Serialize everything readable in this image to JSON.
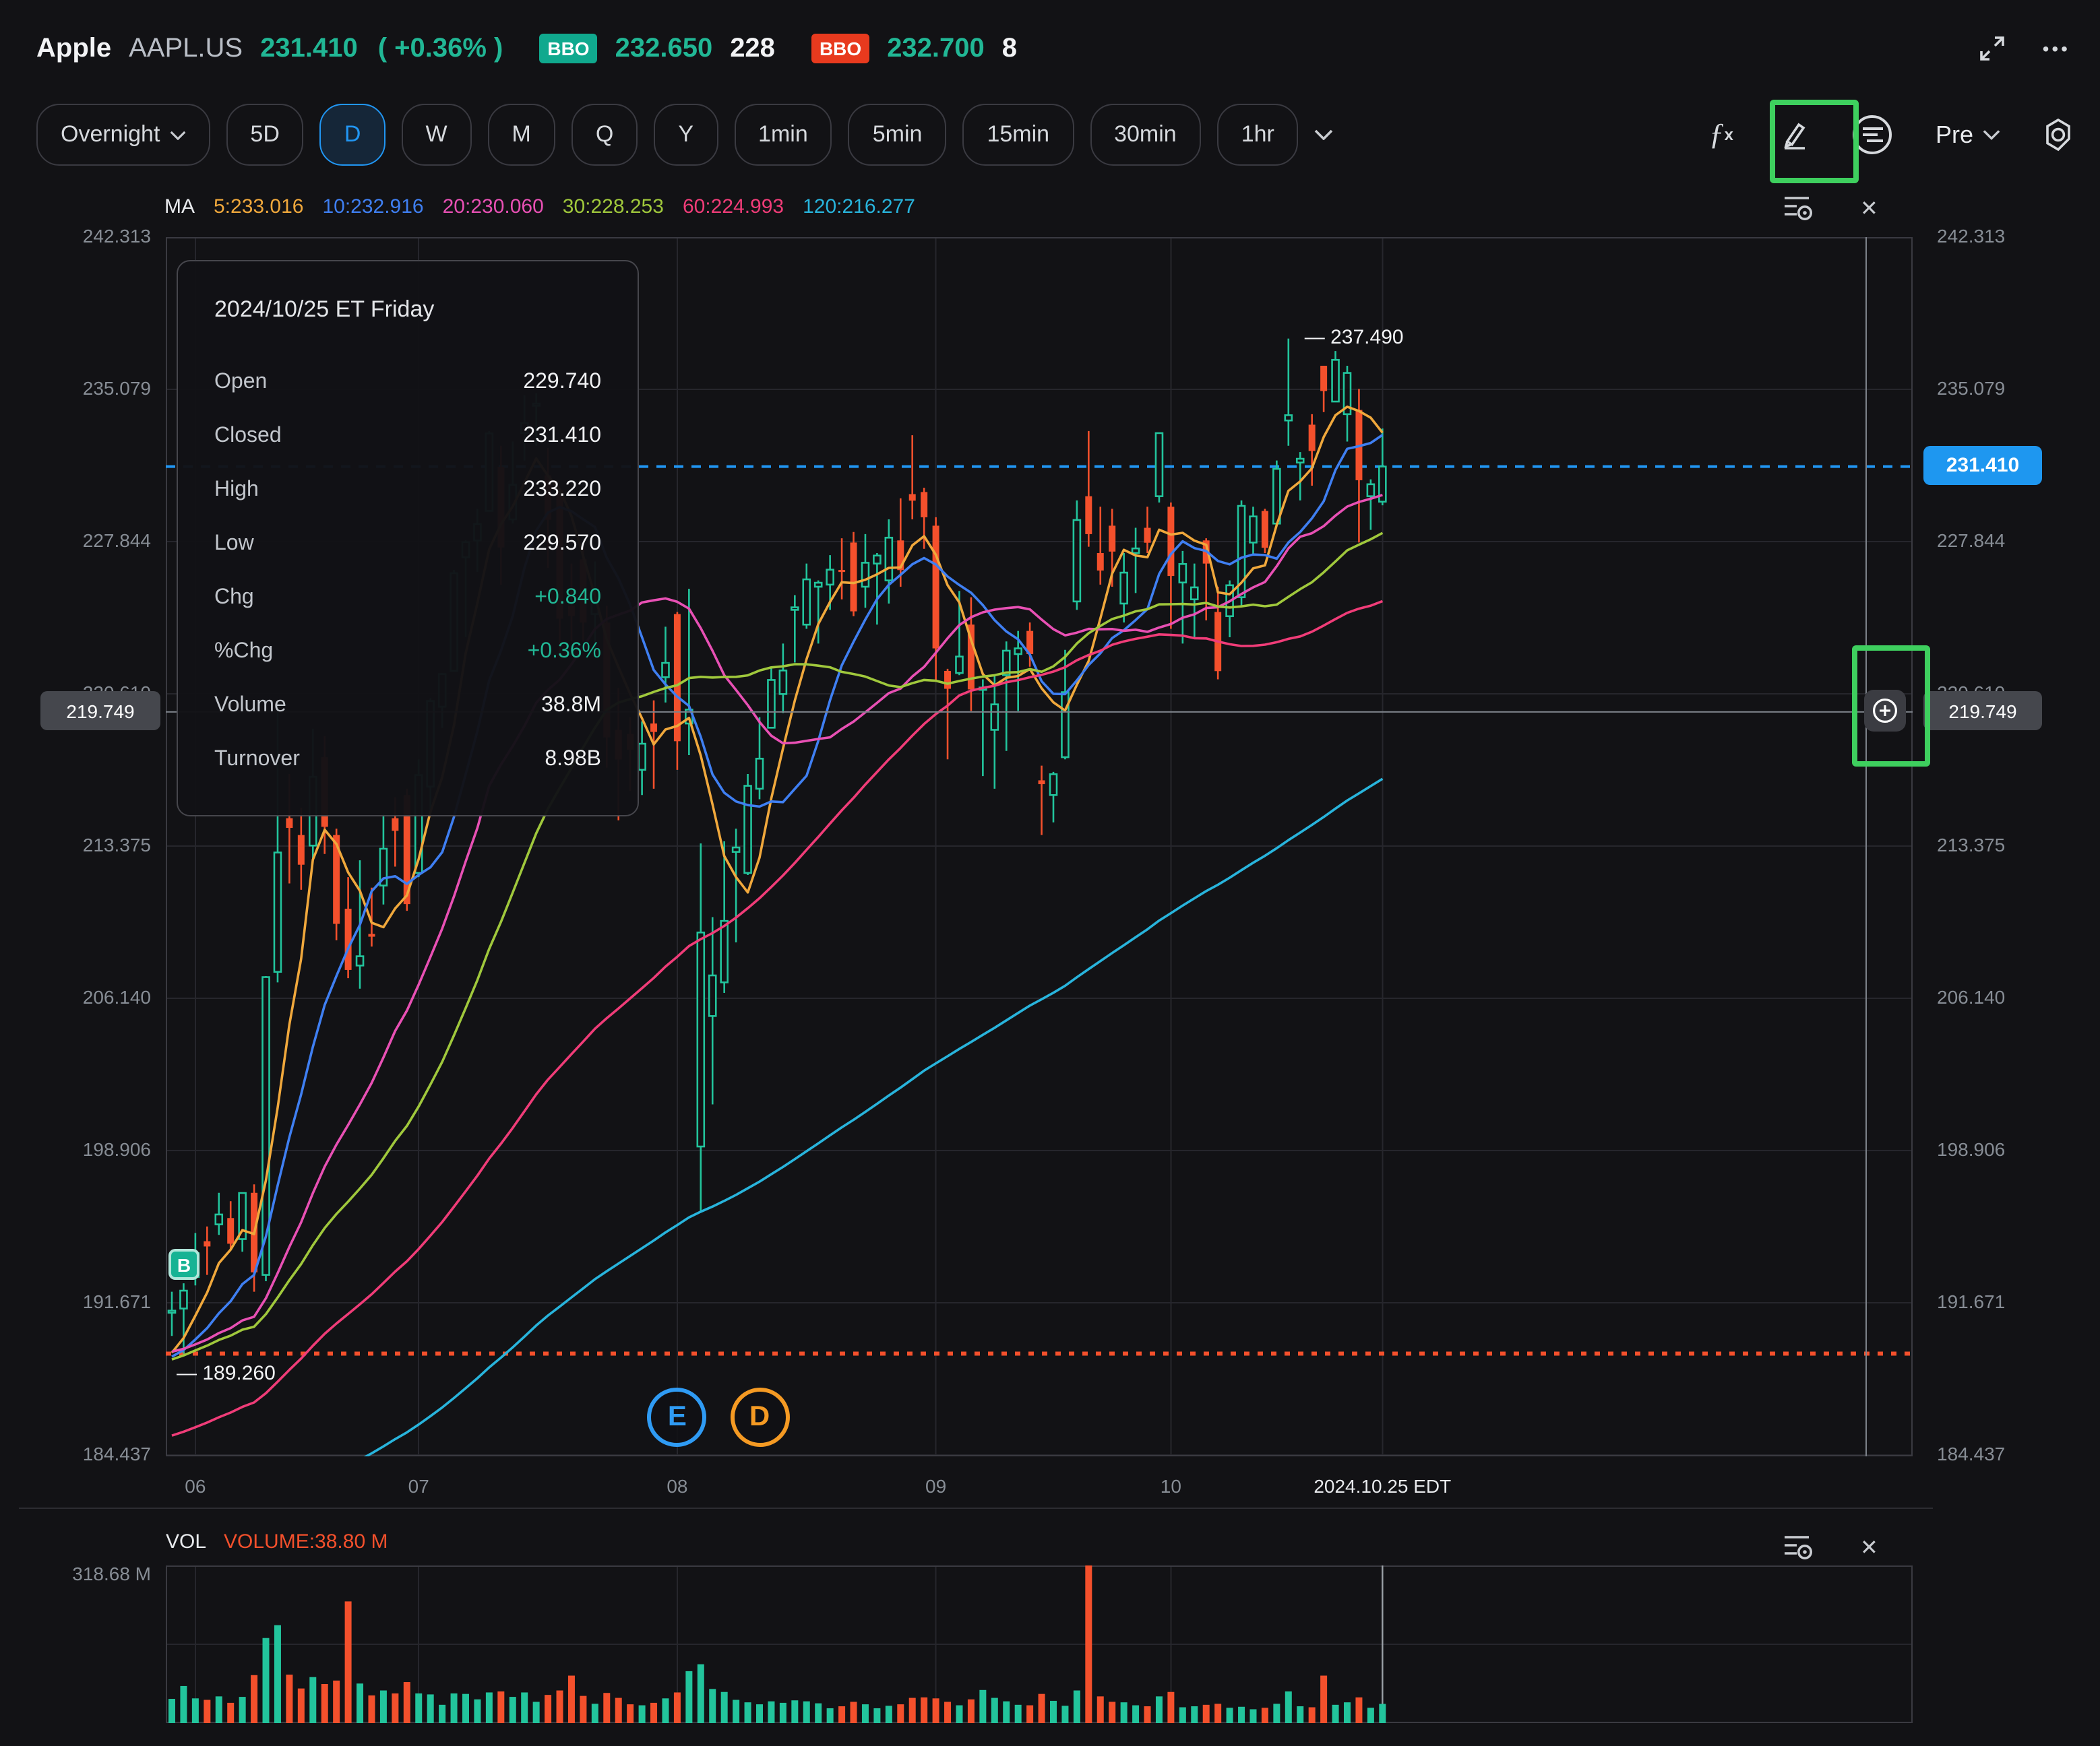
{
  "header": {
    "name": "Apple",
    "symbol": "AAPL.US",
    "price": "231.410",
    "change": "( +0.36% )",
    "bid_label": "BBO",
    "bid_price": "232.650",
    "bid_size": "228",
    "ask_label": "BBO",
    "ask_price": "232.700",
    "ask_size": "8",
    "more_icon": "•••"
  },
  "toolbar": {
    "timeframes": [
      "Overnight",
      "5D",
      "D",
      "W",
      "M",
      "Q",
      "Y",
      "1min",
      "5min",
      "15min",
      "30min",
      "1hr"
    ],
    "active": "D",
    "pre_label": "Pre"
  },
  "ma_legend": {
    "prefix": "MA",
    "items": [
      {
        "label": "5:233.016",
        "color": "#f0a83c"
      },
      {
        "label": "10:232.916",
        "color": "#3f7ff2"
      },
      {
        "label": "20:230.060",
        "color": "#e850b4"
      },
      {
        "label": "30:228.253",
        "color": "#a0c83c"
      },
      {
        "label": "60:224.993",
        "color": "#f03c78"
      },
      {
        "label": "120:216.277",
        "color": "#28b4dc"
      }
    ]
  },
  "tooltip": {
    "title": "2024/10/25 ET Friday",
    "rows": [
      {
        "label": "Open",
        "value": "229.740",
        "accent": false
      },
      {
        "label": "Closed",
        "value": "231.410",
        "accent": false
      },
      {
        "label": "High",
        "value": "233.220",
        "accent": false
      },
      {
        "label": "Low",
        "value": "229.570",
        "accent": false
      },
      {
        "label": "Chg",
        "value": "+0.840",
        "accent": true
      },
      {
        "label": "%Chg",
        "value": "+0.36%",
        "accent": true
      },
      {
        "label": "Volume",
        "value": "38.8M",
        "accent": false
      },
      {
        "label": "Turnover",
        "value": "8.98B",
        "accent": false
      }
    ]
  },
  "volume_pane": {
    "title": "VOL",
    "value_label": "VOLUME:38.80 M",
    "max_label": "318.68 M"
  },
  "chart_data": {
    "type": "candlestick",
    "title": "AAPL.US daily candlesticks Jun-Oct 2024 with MA(5,10,20,30,60,120) overlays",
    "ylim": [
      184.437,
      242.313
    ],
    "y_gridlines": [
      242.313,
      235.079,
      227.844,
      220.61,
      213.375,
      206.14,
      198.906,
      191.671,
      184.437
    ],
    "x_month_ticks": [
      {
        "i": 2,
        "label": "06"
      },
      {
        "i": 21,
        "label": "07"
      },
      {
        "i": 43,
        "label": "08"
      },
      {
        "i": 65,
        "label": "09"
      },
      {
        "i": 85,
        "label": "10"
      }
    ],
    "x_last_tick": {
      "i": 103,
      "label": "2024.10.25 EDT"
    },
    "current_price": 231.41,
    "crosshair_price": 219.749,
    "crosshair_label": "219.749",
    "hidden_grid_label": "220.610",
    "high_marker": {
      "i": 95,
      "price": 237.49,
      "label": "— 237.490"
    },
    "low_marker": {
      "price": 189.26,
      "label": "— 189.260"
    },
    "buy_marker": {
      "i": 1,
      "label": "B"
    },
    "events": [
      {
        "i": 43,
        "label": "E",
        "color": "#2f9bf4"
      },
      {
        "i": 50,
        "label": "D",
        "color": "#f59a23"
      }
    ],
    "ma": [
      {
        "period": 5,
        "color": "#f0a83c",
        "value": 233.016
      },
      {
        "period": 10,
        "color": "#3f7ff2",
        "value": 232.916
      },
      {
        "period": 20,
        "color": "#e850b4",
        "value": 230.06
      },
      {
        "period": 30,
        "color": "#a0c83c",
        "value": 228.253
      },
      {
        "period": 60,
        "color": "#f03c78",
        "value": 224.993
      },
      {
        "period": 120,
        "color": "#28b4dc",
        "value": 216.277
      }
    ],
    "volume_max": 318.68,
    "colors": {
      "up": "#22c49c",
      "down": "#f4502c",
      "accent_blue": "#2196f3",
      "price_box_blue": "#1e97f0",
      "annotation_green": "#3ecf5e",
      "grid": "#26262c",
      "frame": "#3a3a41",
      "crosshair": "#7d828a",
      "low_line": "#f4502c",
      "buy_badge": "#17b394"
    },
    "year": "2024",
    "candles": [
      [
        "05-30",
        191.2,
        192.2,
        190.1,
        191.3,
        49
      ],
      [
        "05-31",
        191.4,
        192.6,
        189.26,
        192.25,
        75
      ],
      [
        "06-03",
        192.9,
        194.99,
        192.5,
        194.03,
        50
      ],
      [
        "06-04",
        194.6,
        195.3,
        193.0,
        194.35,
        47
      ],
      [
        "06-05",
        195.4,
        196.9,
        194.9,
        195.87,
        54
      ],
      [
        "06-06",
        195.7,
        196.5,
        194.2,
        194.48,
        41
      ],
      [
        "06-07",
        194.7,
        196.9,
        194.1,
        196.89,
        53
      ],
      [
        "06-10",
        196.9,
        197.3,
        192.2,
        193.12,
        97
      ],
      [
        "06-11",
        193.0,
        207.2,
        192.7,
        207.15,
        172
      ],
      [
        "06-12",
        207.4,
        220.2,
        206.9,
        213.07,
        198
      ],
      [
        "06-13",
        214.7,
        216.8,
        211.6,
        214.24,
        98
      ],
      [
        "06-14",
        213.9,
        215.2,
        211.3,
        212.49,
        70
      ],
      [
        "06-17",
        213.4,
        218.95,
        212.7,
        216.67,
        93
      ],
      [
        "06-18",
        217.6,
        218.6,
        213.0,
        214.29,
        79
      ],
      [
        "06-20",
        213.9,
        214.2,
        208.9,
        209.68,
        86
      ],
      [
        "06-21",
        210.4,
        211.9,
        207.1,
        207.49,
        246
      ],
      [
        "06-24",
        207.7,
        212.7,
        206.6,
        208.14,
        80
      ],
      [
        "06-25",
        209.2,
        211.4,
        208.6,
        209.07,
        56
      ],
      [
        "06-26",
        211.5,
        214.9,
        210.6,
        213.25,
        66
      ],
      [
        "06-27",
        214.7,
        215.7,
        212.4,
        214.1,
        60
      ],
      [
        "06-28",
        215.8,
        216.1,
        210.3,
        210.62,
        83
      ],
      [
        "07-01",
        212.1,
        217.5,
        211.9,
        216.75,
        60
      ],
      [
        "07-02",
        216.2,
        220.4,
        215.1,
        220.27,
        58
      ],
      [
        "07-03",
        220.0,
        221.6,
        219.0,
        221.55,
        37
      ],
      [
        "07-05",
        221.7,
        226.5,
        221.7,
        226.34,
        60
      ],
      [
        "07-08",
        227.1,
        227.9,
        223.3,
        227.82,
        59
      ],
      [
        "07-09",
        227.9,
        229.4,
        226.4,
        228.68,
        48
      ],
      [
        "07-10",
        229.3,
        233.1,
        229.3,
        232.98,
        62
      ],
      [
        "07-11",
        231.4,
        232.4,
        225.8,
        227.57,
        64
      ],
      [
        "07-12",
        228.9,
        232.6,
        228.7,
        230.54,
        53
      ],
      [
        "07-15",
        233.0,
        234.8,
        231.7,
        233.48,
        62
      ],
      [
        "07-16",
        234.3,
        234.9,
        232.4,
        234.4,
        43
      ],
      [
        "07-17",
        231.0,
        232.3,
        226.6,
        228.88,
        57
      ],
      [
        "07-18",
        230.3,
        230.4,
        222.3,
        224.18,
        66
      ],
      [
        "07-19",
        224.8,
        226.8,
        223.1,
        224.31,
        96
      ],
      [
        "07-22",
        227.0,
        227.8,
        223.1,
        224.0,
        55
      ],
      [
        "07-23",
        224.4,
        226.9,
        222.7,
        225.01,
        39
      ],
      [
        "07-24",
        224.0,
        224.8,
        217.1,
        218.54,
        61
      ],
      [
        "07-25",
        218.9,
        220.9,
        214.6,
        217.49,
        51
      ],
      [
        "07-26",
        218.7,
        219.5,
        216.0,
        217.96,
        38
      ],
      [
        "07-29",
        217.0,
        219.3,
        215.8,
        218.24,
        36
      ],
      [
        "07-30",
        219.2,
        220.3,
        216.1,
        218.8,
        41
      ],
      [
        "07-31",
        221.4,
        223.8,
        220.2,
        222.08,
        50
      ],
      [
        "08-01",
        224.4,
        224.5,
        217.0,
        218.36,
        62
      ],
      [
        "08-02",
        219.2,
        225.6,
        217.7,
        219.86,
        105
      ],
      [
        "08-05",
        199.1,
        213.5,
        196.0,
        209.27,
        119
      ],
      [
        "08-06",
        205.3,
        210.0,
        201.1,
        207.23,
        69
      ],
      [
        "08-07",
        206.9,
        213.6,
        206.4,
        209.82,
        63
      ],
      [
        "08-08",
        213.1,
        214.2,
        208.8,
        213.31,
        47
      ],
      [
        "08-09",
        212.1,
        216.8,
        212.0,
        216.24,
        42
      ],
      [
        "08-12",
        216.1,
        219.5,
        215.6,
        217.53,
        38
      ],
      [
        "08-13",
        219.0,
        221.9,
        219.0,
        221.27,
        44
      ],
      [
        "08-14",
        220.6,
        223.0,
        219.7,
        221.72,
        41
      ],
      [
        "08-15",
        224.6,
        225.3,
        222.1,
        224.72,
        46
      ],
      [
        "08-16",
        223.9,
        226.8,
        223.7,
        226.05,
        44
      ],
      [
        "08-19",
        225.7,
        226.0,
        223.0,
        225.89,
        40
      ],
      [
        "08-20",
        225.8,
        227.2,
        224.6,
        226.51,
        30
      ],
      [
        "08-21",
        226.5,
        228.0,
        225.1,
        226.4,
        34
      ],
      [
        "08-22",
        227.8,
        228.3,
        224.3,
        224.53,
        43
      ],
      [
        "08-23",
        225.7,
        228.2,
        224.7,
        226.84,
        38
      ],
      [
        "08-26",
        226.8,
        227.3,
        223.9,
        227.18,
        30
      ],
      [
        "08-27",
        226.0,
        228.9,
        224.9,
        228.03,
        35
      ],
      [
        "08-28",
        227.9,
        229.9,
        225.7,
        226.49,
        38
      ],
      [
        "08-29",
        230.1,
        232.9,
        228.9,
        229.79,
        51
      ],
      [
        "08-30",
        230.2,
        230.4,
        227.5,
        229.0,
        52
      ],
      [
        "09-03",
        228.6,
        229.0,
        221.2,
        222.77,
        50
      ],
      [
        "09-04",
        221.7,
        221.8,
        217.5,
        220.85,
        43
      ],
      [
        "09-05",
        221.6,
        225.5,
        221.5,
        222.38,
        36
      ],
      [
        "09-06",
        223.9,
        225.2,
        219.8,
        220.82,
        48
      ],
      [
        "09-09",
        220.8,
        221.3,
        216.7,
        220.91,
        67
      ],
      [
        "09-10",
        218.9,
        221.5,
        216.1,
        220.11,
        51
      ],
      [
        "09-11",
        221.5,
        223.1,
        217.9,
        222.66,
        44
      ],
      [
        "09-12",
        222.5,
        223.6,
        219.8,
        222.77,
        37
      ],
      [
        "09-13",
        223.6,
        224.0,
        221.9,
        222.5,
        36
      ],
      [
        "09-16",
        216.5,
        217.2,
        213.9,
        216.32,
        59
      ],
      [
        "09-17",
        215.8,
        216.9,
        214.5,
        216.79,
        45
      ],
      [
        "09-18",
        217.6,
        222.7,
        217.5,
        220.69,
        35
      ],
      [
        "09-19",
        225.0,
        229.8,
        224.6,
        228.87,
        66
      ],
      [
        "09-20",
        230.0,
        233.1,
        227.6,
        228.2,
        318.68
      ],
      [
        "09-23",
        227.3,
        229.5,
        225.8,
        226.47,
        54
      ],
      [
        "09-24",
        228.6,
        229.4,
        225.7,
        227.37,
        43
      ],
      [
        "09-25",
        224.9,
        227.3,
        224.0,
        226.37,
        42
      ],
      [
        "09-26",
        227.3,
        228.5,
        225.4,
        227.52,
        36
      ],
      [
        "09-27",
        228.5,
        229.5,
        227.3,
        227.79,
        34
      ],
      [
        "09-30",
        230.0,
        233.0,
        229.7,
        233.0,
        54
      ],
      [
        "10-01",
        229.5,
        229.7,
        223.7,
        226.21,
        63
      ],
      [
        "10-02",
        225.9,
        227.4,
        223.0,
        226.78,
        32
      ],
      [
        "10-03",
        225.1,
        226.8,
        223.3,
        225.67,
        34
      ],
      [
        "10-04",
        227.9,
        228.0,
        224.1,
        226.8,
        37
      ],
      [
        "10-07",
        224.5,
        225.7,
        221.3,
        221.69,
        39
      ],
      [
        "10-08",
        224.3,
        226.0,
        223.3,
        225.77,
        31
      ],
      [
        "10-09",
        225.2,
        229.8,
        224.8,
        229.54,
        33
      ],
      [
        "10-10",
        227.8,
        229.5,
        227.2,
        229.04,
        28
      ],
      [
        "10-11",
        229.3,
        229.4,
        227.3,
        227.55,
        31
      ],
      [
        "10-14",
        228.7,
        231.7,
        228.6,
        231.3,
        39
      ],
      [
        "10-15",
        233.6,
        237.49,
        232.4,
        233.85,
        64
      ],
      [
        "10-16",
        231.6,
        232.1,
        229.8,
        231.78,
        34
      ],
      [
        "10-17",
        233.4,
        233.9,
        230.5,
        232.15,
        32
      ],
      [
        "10-18",
        236.2,
        236.2,
        234.0,
        235.0,
        96
      ],
      [
        "10-21",
        234.5,
        236.9,
        234.5,
        236.48,
        37
      ],
      [
        "10-22",
        233.9,
        236.2,
        232.6,
        235.86,
        42
      ],
      [
        "10-23",
        234.1,
        235.1,
        227.8,
        230.76,
        52
      ],
      [
        "10-24",
        230.0,
        230.8,
        228.4,
        230.57,
        31
      ],
      [
        "10-25",
        229.74,
        233.22,
        229.57,
        231.41,
        38.8
      ]
    ]
  }
}
